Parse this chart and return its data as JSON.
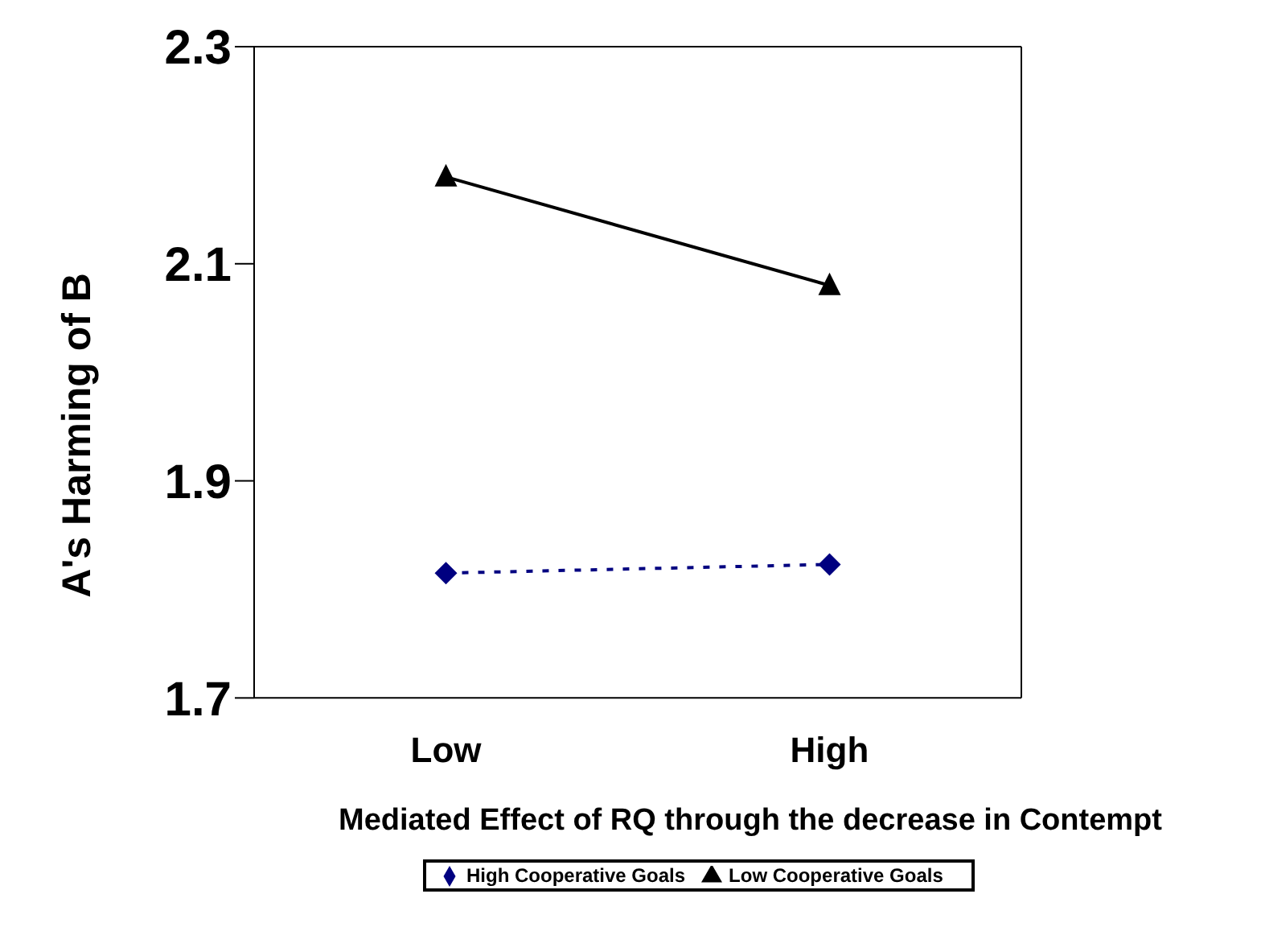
{
  "chart_data": {
    "type": "line",
    "xlabel": "Mediated Effect of RQ through the decrease in Contempt",
    "ylabel": "A's Harming of B",
    "categories": [
      "Low",
      "High"
    ],
    "series": [
      {
        "name": "High Cooperative Goals",
        "color": "#000080",
        "values": [
          1.815,
          1.823
        ],
        "marker": "diamond",
        "line_style": "dashed"
      },
      {
        "name": "Low Cooperative Goals",
        "color": "#000000",
        "values": [
          2.18,
          2.08
        ],
        "marker": "triangle",
        "line_style": "solid"
      }
    ],
    "ylim": [
      1.7,
      2.3
    ],
    "yticks": [
      1.7,
      1.9,
      2.1,
      2.3
    ],
    "legend": "bottom"
  }
}
